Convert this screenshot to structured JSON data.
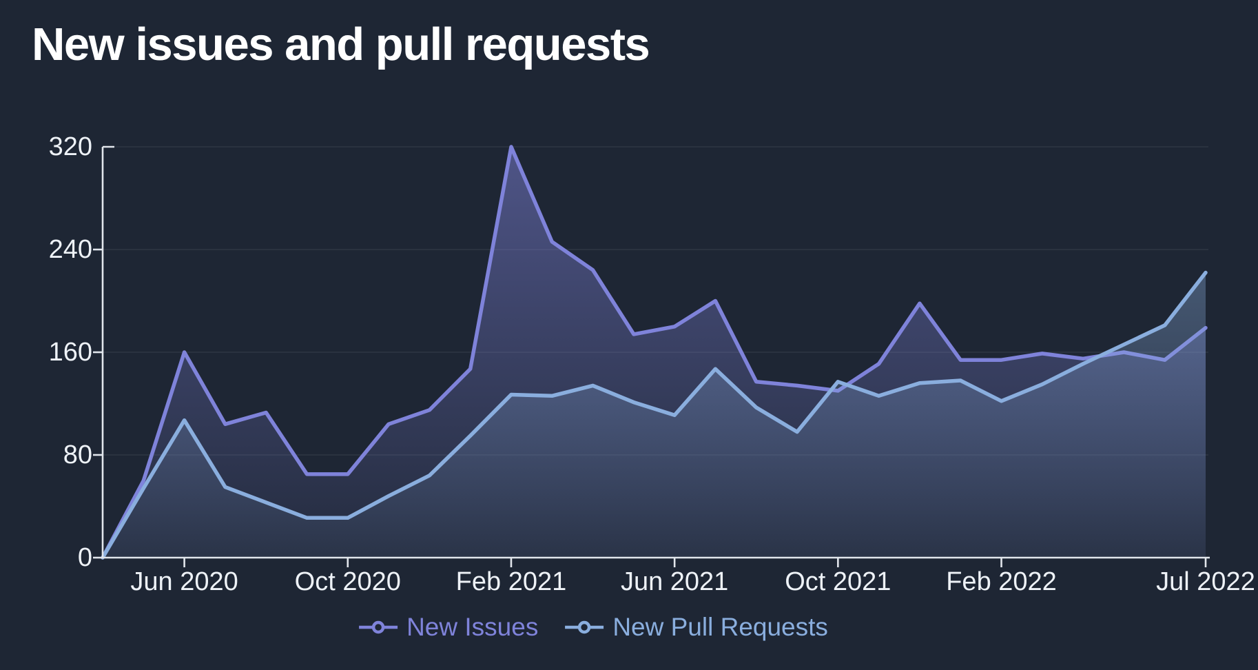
{
  "page": {
    "background": "#1e2634",
    "axis_color": "#e2e6ec",
    "grid_color": "rgba(255,255,255,0.08)",
    "title_color": "#ffffff",
    "tick_label_color": "#eef2f7"
  },
  "chart_data": {
    "type": "area",
    "title": "New issues and pull requests",
    "x": [
      "Apr 2020",
      "May 2020",
      "Jun 2020",
      "Jul 2020",
      "Aug 2020",
      "Sep 2020",
      "Oct 2020",
      "Nov 2020",
      "Dec 2020",
      "Jan 2021",
      "Feb 2021",
      "Mar 2021",
      "Apr 2021",
      "May 2021",
      "Jun 2021",
      "Jul 2021",
      "Aug 2021",
      "Sep 2021",
      "Oct 2021",
      "Nov 2021",
      "Dec 2021",
      "Jan 2022",
      "Feb 2022",
      "Mar 2022",
      "Apr 2022",
      "May 2022",
      "Jun 2022",
      "Jul 2022"
    ],
    "series": [
      {
        "name": "New Issues",
        "color": "#7f83da",
        "values": [
          0,
          60,
          160,
          104,
          113,
          65,
          65,
          104,
          115,
          147,
          320,
          246,
          224,
          174,
          180,
          200,
          137,
          134,
          130,
          151,
          198,
          154,
          154,
          159,
          155,
          160,
          154,
          179
        ]
      },
      {
        "name": "New Pull Requests",
        "color": "#8aaede",
        "values": [
          0,
          54,
          107,
          55,
          43,
          31,
          31,
          48,
          64,
          95,
          127,
          126,
          134,
          121,
          111,
          147,
          117,
          98,
          137,
          126,
          136,
          138,
          122,
          135,
          151,
          166,
          181,
          222
        ]
      }
    ],
    "ylim": [
      0,
      320
    ],
    "y_tick_labels": [
      "320",
      "240",
      "160",
      "80",
      "0"
    ],
    "x_ticks": [
      {
        "label": "Jun 2020",
        "index": 2
      },
      {
        "label": "Oct 2020",
        "index": 6
      },
      {
        "label": "Feb 2021",
        "index": 10
      },
      {
        "label": "Jun 2021",
        "index": 14
      },
      {
        "label": "Oct 2021",
        "index": 18
      },
      {
        "label": "Feb 2022",
        "index": 22
      },
      {
        "label": "Jul 2022",
        "index": 27
      }
    ],
    "grid": true,
    "legend_position": "bottom-center"
  }
}
